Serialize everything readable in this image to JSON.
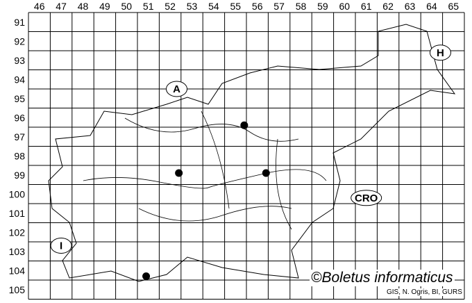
{
  "map": {
    "columns": [
      "46",
      "47",
      "48",
      "49",
      "50",
      "51",
      "52",
      "53",
      "54",
      "55",
      "56",
      "57",
      "58",
      "59",
      "60",
      "61",
      "62",
      "63",
      "64",
      "65"
    ],
    "rows": [
      "91",
      "92",
      "93",
      "94",
      "95",
      "96",
      "97",
      "98",
      "99",
      "100",
      "101",
      "102",
      "103",
      "104",
      "105"
    ],
    "country_labels": [
      {
        "text": "A",
        "col": 52.3,
        "row": 94.5
      },
      {
        "text": "H",
        "col": 64.4,
        "row": 92.6
      },
      {
        "text": "CRO",
        "col": 61.0,
        "row": 100.2
      },
      {
        "text": "I",
        "col": 47.0,
        "row": 102.7
      }
    ],
    "records": [
      {
        "col": 55.4,
        "row": 96.4
      },
      {
        "col": 52.4,
        "row": 98.9
      },
      {
        "col": 56.4,
        "row": 98.9
      },
      {
        "col": 50.9,
        "row": 104.3
      }
    ],
    "colors": {
      "grid": "#000000",
      "record": "#000000",
      "background": "#ffffff"
    }
  },
  "credit": "©Boletus informaticus",
  "source": "GIS, N. Ogris, BI, GURS"
}
